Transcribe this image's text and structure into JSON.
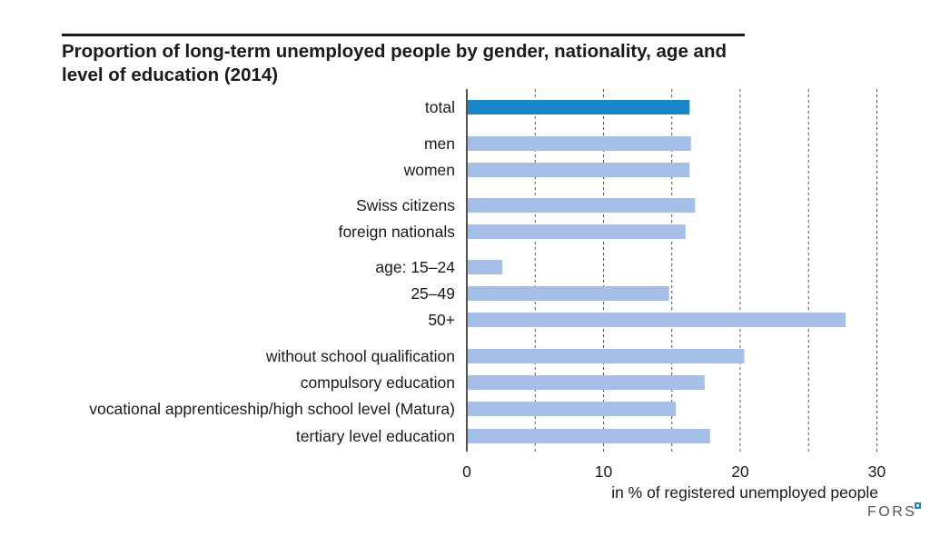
{
  "chart_data": {
    "type": "bar",
    "orientation": "horizontal",
    "title": "Proportion of long-term unemployed people by gender, nationality, age and level of education (2014)",
    "xlabel": "in % of registered unemployed people",
    "xlim": [
      0,
      30
    ],
    "xticks": [
      0,
      10,
      20,
      30
    ],
    "xtick_labels": [
      "0",
      "10",
      "20",
      "30"
    ],
    "grid": "dashed vertical at 5-unit intervals",
    "categories": [
      "total",
      "men",
      "women",
      "Swiss citizens",
      "foreign nationals",
      "age: 15–24",
      "25–49",
      "50+",
      "without school qualification",
      "compulsory education",
      "vocational apprenticeship/high school level (Matura)",
      "tertiary level education"
    ],
    "values": [
      16.3,
      16.4,
      16.3,
      16.7,
      16.0,
      2.6,
      14.8,
      27.7,
      20.3,
      17.4,
      15.3,
      17.8
    ],
    "highlight_category": "total",
    "colors": {
      "highlight": "#1a85c9",
      "bar": "#a6bfe6"
    }
  },
  "brand": {
    "logo_text": "FORS",
    "logo_color": "#1a85c9"
  }
}
